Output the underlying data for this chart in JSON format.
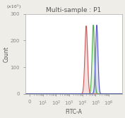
{
  "title": "Multi-sample : P1",
  "xlabel": "FITC-A",
  "ylabel": "Count",
  "background_color": "#eeede8",
  "plot_bg_color": "#ffffff",
  "curves": [
    {
      "color": "#cc5555",
      "peak_log": 4.28,
      "sigma_log": 0.1,
      "amplitude": 255,
      "fill_alpha": 0.18
    },
    {
      "color": "#44aa44",
      "peak_log": 4.82,
      "sigma_log": 0.09,
      "amplitude": 258,
      "fill_alpha": 0.15
    },
    {
      "color": "#5555cc",
      "peak_log": 5.08,
      "sigma_log": 0.09,
      "amplitude": 258,
      "fill_alpha": 0.18
    }
  ],
  "xlim_log": [
    -0.3,
    7.0
  ],
  "ylim": [
    0,
    300
  ],
  "yticks": [
    0,
    100,
    200,
    300
  ],
  "xtick_positions": [
    0,
    1,
    2,
    3,
    4,
    5,
    6
  ],
  "title_fontsize": 6.5,
  "axis_fontsize": 5.5,
  "tick_fontsize": 5.0,
  "spine_color": "#aaaaaa",
  "tick_color": "#888888",
  "text_color": "#555555"
}
